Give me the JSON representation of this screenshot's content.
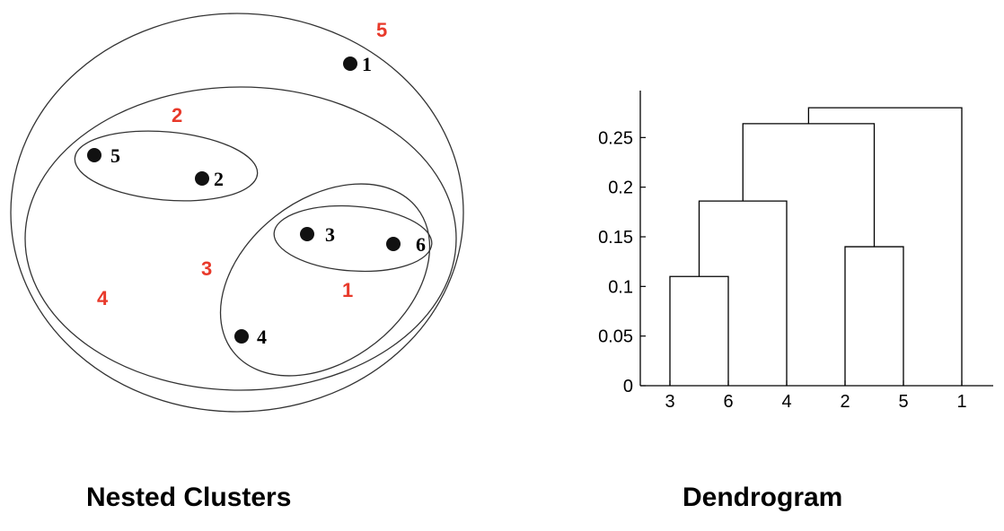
{
  "nested_clusters": {
    "caption": "Nested Clusters",
    "points": [
      {
        "label": "1"
      },
      {
        "label": "2"
      },
      {
        "label": "3"
      },
      {
        "label": "4"
      },
      {
        "label": "5"
      },
      {
        "label": "6"
      }
    ],
    "cluster_labels": [
      "1",
      "2",
      "3",
      "4",
      "5"
    ],
    "colors": {
      "point": "#111111",
      "cluster_label": "#e8392a",
      "outline": "#333333"
    }
  },
  "dendrogram": {
    "caption": "Dendrogram",
    "leaf_order": [
      "3",
      "6",
      "4",
      "2",
      "5",
      "1"
    ]
  },
  "chart_data": {
    "type": "dendrogram",
    "title": "Dendrogram",
    "xlabel": "",
    "ylabel": "",
    "ylim": [
      0,
      0.3
    ],
    "yticks": [
      "0",
      "0.05",
      "0.1",
      "0.15",
      "0.2",
      "0.25"
    ],
    "categories": [
      "3",
      "6",
      "4",
      "2",
      "5",
      "1"
    ],
    "merges": [
      {
        "left": "3",
        "right": "6",
        "height": 0.11
      },
      {
        "left": "2",
        "right": "5",
        "height": 0.14
      },
      {
        "left": "3,6",
        "right": "4",
        "height": 0.186
      },
      {
        "left": "3,6,4",
        "right": "2,5",
        "height": 0.264
      },
      {
        "left": "3,6,4,2,5",
        "right": "1",
        "height": 0.28
      }
    ]
  }
}
